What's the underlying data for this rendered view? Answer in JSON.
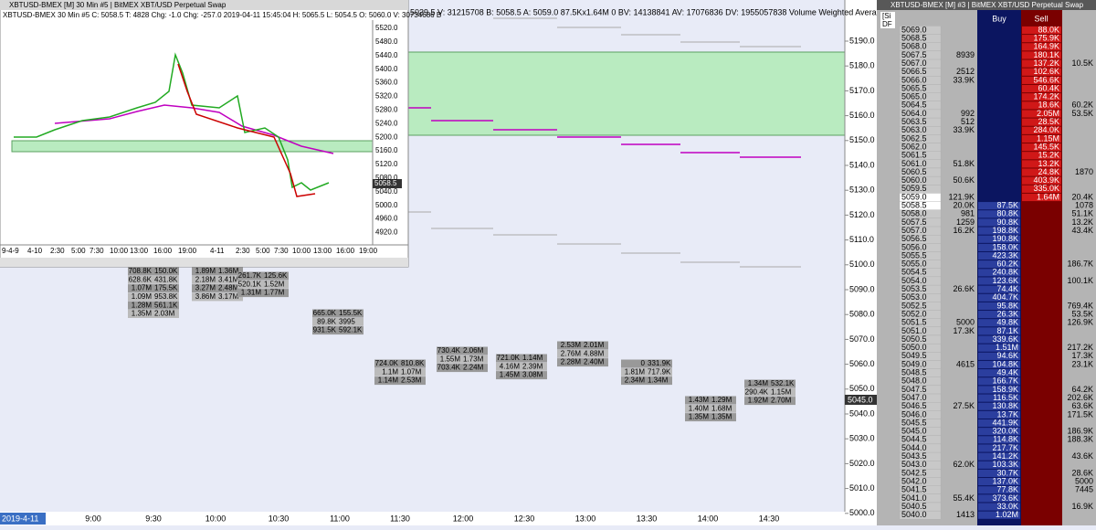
{
  "main": {
    "info": "5039.5 V: 31215708 B: 5058.5 A: 5059.0 87.5Kx1.64M 0 BV: 14138841 AV: 17076836 DV: 1955057838 Volume Weighted Avera",
    "price_axis": [
      "5190.0",
      "5180.0",
      "5170.0",
      "5160.0",
      "5150.0",
      "5140.0",
      "5130.0",
      "5120.0",
      "5110.0",
      "5100.0",
      "5090.0",
      "5080.0",
      "5070.0",
      "5060.0",
      "5050.0",
      "5040.0",
      "5030.0",
      "5020.0",
      "5010.0",
      "5000.0"
    ],
    "last_price": "5045.0",
    "date": "2019-4-11",
    "times": [
      "9:00",
      "9:30",
      "10:00",
      "10:30",
      "11:00",
      "11:30",
      "12:00",
      "12:30",
      "13:00",
      "13:30",
      "14:00",
      "14:30"
    ],
    "footprint": [
      {
        "rows": [
          [
            "708.8K",
            "150.0K"
          ],
          [
            "628.6K",
            "431.8K"
          ],
          [
            "1.07M",
            "175.5K"
          ],
          [
            "1.09M",
            "953.8K"
          ],
          [
            "1.28M",
            "561.1K"
          ],
          [
            "1.35M",
            "2.03M"
          ]
        ]
      },
      {
        "rows": [
          [
            "1.89M",
            "1.36M"
          ],
          [
            "2.18M",
            "3.41M"
          ],
          [
            "3.27M",
            "2.48M"
          ],
          [
            "3.86M",
            "3.17M"
          ]
        ]
      },
      {
        "rows": [
          [
            "261.7K",
            "125.6K"
          ],
          [
            "520.1K",
            "1.52M"
          ],
          [
            "1.31M",
            "1.77M"
          ]
        ]
      },
      {
        "rows": [
          [
            "665.0K",
            "155.5K"
          ],
          [
            "89.8K",
            "3995"
          ],
          [
            "931.5K",
            "592.1K"
          ]
        ]
      },
      {
        "rows": [
          [
            "724.0K",
            "810.8K"
          ],
          [
            "1.1M",
            "1.07M"
          ],
          [
            "1.14M",
            "2.53M"
          ]
        ]
      },
      {
        "rows": [
          [
            "730.4K",
            "2.06M"
          ],
          [
            "1.55M",
            "1.73M"
          ],
          [
            "703.4K",
            "2.24M"
          ]
        ]
      },
      {
        "rows": [
          [
            "721.0K",
            "1.14M"
          ],
          [
            "4.16M",
            "2.39M"
          ],
          [
            "1.45M",
            "3.08M"
          ]
        ]
      },
      {
        "rows": [
          [
            "2.53M",
            "2.01M"
          ],
          [
            "2.76M",
            "4.88M"
          ],
          [
            "2.28M",
            "2.40M"
          ]
        ]
      },
      {
        "rows": [
          [
            "0",
            "331.9K"
          ],
          [
            "1.81M",
            "717.9K"
          ],
          [
            "2.34M",
            "1.34M"
          ]
        ]
      },
      {
        "rows": [
          [
            "1.43M",
            "1.29M"
          ],
          [
            "1.40M",
            "1.68M"
          ],
          [
            "1.35M",
            "1.35M"
          ]
        ]
      },
      {
        "rows": [
          [
            "1.34M",
            "532.1K"
          ],
          [
            "290.4K",
            "1.15M"
          ],
          [
            "1.92M",
            "2.70M"
          ]
        ]
      }
    ]
  },
  "inset": {
    "title": "XBTUSD-BMEX [M]  30 Min  #5 | BitMEX XBT/USD Perpetual Swap",
    "info": "XBTUSD-BMEX  30 Min  #5  C: 5058.5  T: 4828  Chg: -1.0  Chg: -257.0  2019-04-11 15:45:04 H: 5065.5 L: 5054.5 O: 5060.0 V: 30734686 B",
    "price_axis": [
      "5520.0",
      "5480.0",
      "5440.0",
      "5400.0",
      "5360.0",
      "5320.0",
      "5280.0",
      "5240.0",
      "5200.0",
      "5160.0",
      "5120.0",
      "5080.0",
      "5040.0",
      "5000.0",
      "4960.0",
      "4920.0"
    ],
    "last_price": "5058.5",
    "times": [
      "9-4-9",
      "4-10",
      "2:30",
      "5:00",
      "7:30",
      "10:00",
      "13:00",
      "16:00",
      "19:00",
      "4-11",
      "2:30",
      "5:00",
      "7:30",
      "10:00",
      "13:00",
      "16:00",
      "19:00"
    ]
  },
  "dom": {
    "title": "XBTUSD-BMEX [M]  #3 | BitMEX XBT/USD Perpetual Swap",
    "corner": [
      "[Si",
      "DF"
    ],
    "buy": "Buy",
    "sell": "Sell",
    "rows": [
      [
        "5069.0",
        null,
        null,
        "88.0K",
        null
      ],
      [
        "5068.5",
        null,
        null,
        "175.9K",
        null
      ],
      [
        "5068.0",
        null,
        null,
        "164.9K",
        null
      ],
      [
        "5067.5",
        "8939",
        null,
        "180.1K",
        null
      ],
      [
        "5067.0",
        null,
        null,
        "137.2K",
        "10.5K"
      ],
      [
        "5066.5",
        "2512",
        null,
        "102.6K",
        null
      ],
      [
        "5066.0",
        "33.9K",
        null,
        "546.6K",
        null
      ],
      [
        "5065.5",
        null,
        null,
        "60.4K",
        null
      ],
      [
        "5065.0",
        null,
        null,
        "174.2K",
        null
      ],
      [
        "5064.5",
        null,
        null,
        "18.6K",
        "60.2K"
      ],
      [
        "5064.0",
        "992",
        null,
        "2.05M",
        "53.5K"
      ],
      [
        "5063.5",
        "512",
        null,
        "28.5K",
        null
      ],
      [
        "5063.0",
        "33.9K",
        null,
        "284.0K",
        null
      ],
      [
        "5062.5",
        null,
        null,
        "1.15M",
        null
      ],
      [
        "5062.0",
        null,
        null,
        "145.5K",
        null
      ],
      [
        "5061.5",
        null,
        null,
        "15.2K",
        null
      ],
      [
        "5061.0",
        "51.8K",
        null,
        "13.2K",
        null
      ],
      [
        "5060.5",
        null,
        null,
        "24.8K",
        "1870"
      ],
      [
        "5060.0",
        "50.6K",
        null,
        "403.9K",
        null
      ],
      [
        "5059.5",
        null,
        null,
        "335.0K",
        null
      ],
      [
        "5059.0",
        "121.9K",
        null,
        "1.64M",
        "20.4K"
      ],
      [
        "5058.5",
        "20.0K",
        "87.5K",
        null,
        "1078"
      ],
      [
        "5058.0",
        "981",
        "80.8K",
        null,
        "51.1K"
      ],
      [
        "5057.5",
        "1259",
        "90.8K",
        null,
        "13.2K"
      ],
      [
        "5057.0",
        "16.2K",
        "198.8K",
        null,
        "43.4K"
      ],
      [
        "5056.5",
        null,
        "190.8K",
        null,
        null
      ],
      [
        "5056.0",
        null,
        "158.0K",
        null,
        null
      ],
      [
        "5055.5",
        null,
        "423.3K",
        null,
        null
      ],
      [
        "5055.0",
        null,
        "60.2K",
        null,
        "186.7K"
      ],
      [
        "5054.5",
        null,
        "240.8K",
        null,
        null
      ],
      [
        "5054.0",
        null,
        "123.6K",
        null,
        "100.1K"
      ],
      [
        "5053.5",
        "26.6K",
        "74.4K",
        null,
        null
      ],
      [
        "5053.0",
        null,
        "404.7K",
        null,
        null
      ],
      [
        "5052.5",
        null,
        "95.8K",
        null,
        "769.4K"
      ],
      [
        "5052.0",
        null,
        "26.3K",
        null,
        "53.5K"
      ],
      [
        "5051.5",
        "5000",
        "49.8K",
        null,
        "126.9K"
      ],
      [
        "5051.0",
        "17.3K",
        "87.1K",
        null,
        null
      ],
      [
        "5050.5",
        null,
        "339.6K",
        null,
        null
      ],
      [
        "5050.0",
        null,
        "1.51M",
        null,
        "217.2K"
      ],
      [
        "5049.5",
        null,
        "94.6K",
        null,
        "17.3K"
      ],
      [
        "5049.0",
        "4615",
        "104.8K",
        null,
        "23.1K"
      ],
      [
        "5048.5",
        null,
        "49.4K",
        null,
        null
      ],
      [
        "5048.0",
        null,
        "166.7K",
        null,
        null
      ],
      [
        "5047.5",
        null,
        "158.9K",
        null,
        "64.2K"
      ],
      [
        "5047.0",
        null,
        "116.5K",
        null,
        "202.6K"
      ],
      [
        "5046.5",
        "27.5K",
        "130.8K",
        null,
        "63.6K"
      ],
      [
        "5046.0",
        null,
        "13.7K",
        null,
        "171.5K"
      ],
      [
        "5045.5",
        null,
        "441.9K",
        null,
        null
      ],
      [
        "5045.0",
        null,
        "320.0K",
        null,
        "186.9K"
      ],
      [
        "5044.5",
        null,
        "114.8K",
        null,
        "188.3K"
      ],
      [
        "5044.0",
        null,
        "217.7K",
        null,
        null
      ],
      [
        "5043.5",
        null,
        "141.2K",
        null,
        "43.6K"
      ],
      [
        "5043.0",
        "62.0K",
        "103.3K",
        null,
        null
      ],
      [
        "5042.5",
        null,
        "30.7K",
        null,
        "28.6K"
      ],
      [
        "5042.0",
        null,
        "137.0K",
        null,
        "5000"
      ],
      [
        "5041.5",
        null,
        "77.8K",
        null,
        "7445"
      ],
      [
        "5041.0",
        "55.4K",
        "373.6K",
        null,
        null
      ],
      [
        "5040.5",
        null,
        "33.0K",
        null,
        "16.9K"
      ],
      [
        "5040.0",
        "1413",
        "1.02M",
        null,
        null
      ]
    ]
  }
}
